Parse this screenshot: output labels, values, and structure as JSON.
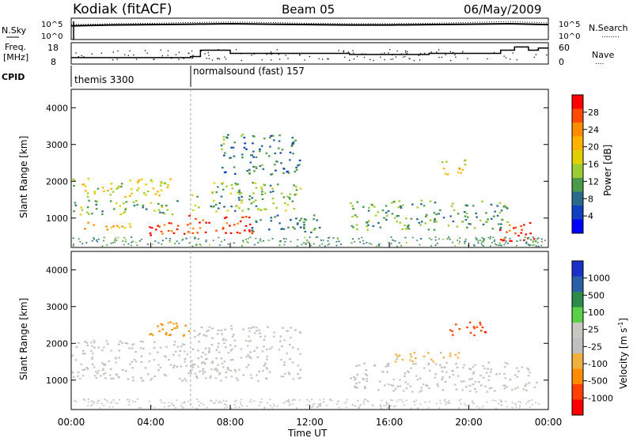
{
  "header": {
    "station": "Kodiak (fitACF)",
    "beam": "Beam 05",
    "date": "06/May/2009"
  },
  "strip_labels": {
    "nsky": "N.Sky",
    "nsearch": "N.Search",
    "nsearch_dots": "........",
    "freq_line1": "Freq.",
    "freq_line2": "[MHz]",
    "nave": "Nave",
    "nave_dots": "....",
    "cpid": "CPID"
  },
  "noise_ticks": {
    "top": "10^5",
    "bottom": "10^0"
  },
  "freq_ticks": [
    "18",
    "8"
  ],
  "nave_ticks": [
    "60",
    "0"
  ],
  "cpid_segments": [
    {
      "label": "themis 3300",
      "start_hour": 0.0,
      "end_hour": 6.0
    },
    {
      "label": "normalsound (fast) 157",
      "start_hour": 6.0,
      "end_hour": 24.0
    }
  ],
  "power_panel": {
    "ylabel": "Slant Range [km]",
    "colorbar_label": "Power [dB]",
    "colorbar_ticks": [
      "28",
      "24",
      "20",
      "16",
      "12",
      "8",
      "4"
    ],
    "colorbar_colors": [
      "#ff0000",
      "#ff4a00",
      "#ff8c00",
      "#ffb300",
      "#e0d000",
      "#9bcc32",
      "#4a9a4a",
      "#2a6a8a",
      "#1040c0",
      "#0000ff"
    ],
    "y_ticks": [
      "4000",
      "3000",
      "2000",
      "1000"
    ]
  },
  "velocity_panel": {
    "ylabel": "Slant Range [km]",
    "colorbar_label_main": "Velocity [m s",
    "colorbar_label_sup": "-1",
    "colorbar_label_end": "]",
    "colorbar_ticks": [
      "1000",
      "500",
      "100",
      "25",
      "-25",
      "-100",
      "-500",
      "-1000"
    ],
    "colorbar_colors": [
      "#1a30c8",
      "#2a60a8",
      "#2e8a4a",
      "#5ad048",
      "#c8c8c0",
      "#c0c0c0",
      "#f0b040",
      "#ff8c00",
      "#ff4000",
      "#ff0000"
    ],
    "y_ticks": [
      "4000",
      "3000",
      "2000",
      "1000"
    ]
  },
  "xaxis": {
    "label": "Time UT",
    "ticks": [
      "00:00",
      "04:00",
      "08:00",
      "12:00",
      "16:00",
      "20:00",
      "00:00"
    ]
  },
  "chart_data": [
    {
      "type": "line",
      "title": "N.Sky / N.Search",
      "x": [
        0,
        2,
        4,
        6,
        8,
        10,
        12,
        14,
        16,
        18,
        20,
        22,
        24
      ],
      "series": [
        {
          "name": "N.Sky",
          "values": [
            3.2,
            3.4,
            3.5,
            3.6,
            3.7,
            3.6,
            3.5,
            3.4,
            3.4,
            3.5,
            3.6,
            3.7,
            3.5
          ]
        },
        {
          "name": "N.Search",
          "values": [
            3.5,
            3.7,
            3.8,
            4.0,
            4.1,
            4.0,
            3.8,
            3.7,
            3.7,
            3.8,
            4.0,
            4.2,
            3.9
          ]
        }
      ],
      "ylim": [
        0,
        5
      ]
    },
    {
      "type": "line",
      "title": "Freq / Nave",
      "x": [
        0,
        4.4,
        6.0,
        6.5,
        8.0,
        12.0,
        14.0,
        18.0,
        21.6,
        22.3,
        23.0,
        23.5,
        24.0
      ],
      "series": [
        {
          "name": "Freq.",
          "values": [
            11.0,
            11.0,
            11.5,
            14.5,
            13.0,
            13.0,
            12.5,
            13.0,
            14.5,
            16.0,
            14.5,
            15.5,
            15.5
          ]
        }
      ],
      "ylim": [
        8,
        18
      ]
    },
    {
      "type": "heatmap",
      "title": "Power [dB]",
      "xlabel": "Time UT",
      "ylabel": "Slant Range [km]",
      "xlim": [
        0,
        24
      ],
      "ylim": [
        200,
        4500
      ],
      "zlim": [
        0,
        30
      ],
      "patches": [
        {
          "t": [
            0.5,
            3.5
          ],
          "r": [
            700,
            900
          ],
          "z": 20
        },
        {
          "t": [
            0.0,
            5.5
          ],
          "r": [
            1100,
            1500
          ],
          "z": 12
        },
        {
          "t": [
            0.0,
            5.0
          ],
          "r": [
            1600,
            2100
          ],
          "z": 16
        },
        {
          "t": [
            3.8,
            5.8
          ],
          "r": [
            500,
            900
          ],
          "z": 28
        },
        {
          "t": [
            5.8,
            9.5
          ],
          "r": [
            600,
            1100
          ],
          "z": 28
        },
        {
          "t": [
            6.0,
            11.5
          ],
          "r": [
            1200,
            2000
          ],
          "z": 12
        },
        {
          "t": [
            7.5,
            11.5
          ],
          "r": [
            2200,
            3300
          ],
          "z": 8
        },
        {
          "t": [
            9.0,
            12.5
          ],
          "r": [
            600,
            1100
          ],
          "z": 8
        },
        {
          "t": [
            14.0,
            22.0
          ],
          "r": [
            700,
            1500
          ],
          "z": 10
        },
        {
          "t": [
            18.5,
            20.0
          ],
          "r": [
            2200,
            2600
          ],
          "z": 18
        },
        {
          "t": [
            21.5,
            23.5
          ],
          "r": [
            350,
            900
          ],
          "z": 28
        }
      ]
    },
    {
      "type": "heatmap",
      "title": "Velocity [m s-1]",
      "xlabel": "Time UT",
      "ylabel": "Slant Range [km]",
      "xlim": [
        0,
        24
      ],
      "ylim": [
        200,
        4500
      ],
      "zlim": [
        -1000,
        1000
      ],
      "patches": [
        {
          "t": [
            0.0,
            6.0
          ],
          "r": [
            1000,
            2100
          ],
          "z": 0
        },
        {
          "t": [
            3.8,
            6.0
          ],
          "r": [
            2100,
            2600
          ],
          "z": -500
        },
        {
          "t": [
            6.0,
            11.5
          ],
          "r": [
            1000,
            2500
          ],
          "z": 0
        },
        {
          "t": [
            6.0,
            8.0
          ],
          "r": [
            1200,
            1600
          ],
          "z": 100
        },
        {
          "t": [
            14.0,
            23.5
          ],
          "r": [
            700,
            1500
          ],
          "z": 0
        },
        {
          "t": [
            16.0,
            19.5
          ],
          "r": [
            1500,
            1800
          ],
          "z": -300
        },
        {
          "t": [
            19.0,
            21.0
          ],
          "r": [
            2200,
            2600
          ],
          "z": -800
        }
      ]
    }
  ]
}
